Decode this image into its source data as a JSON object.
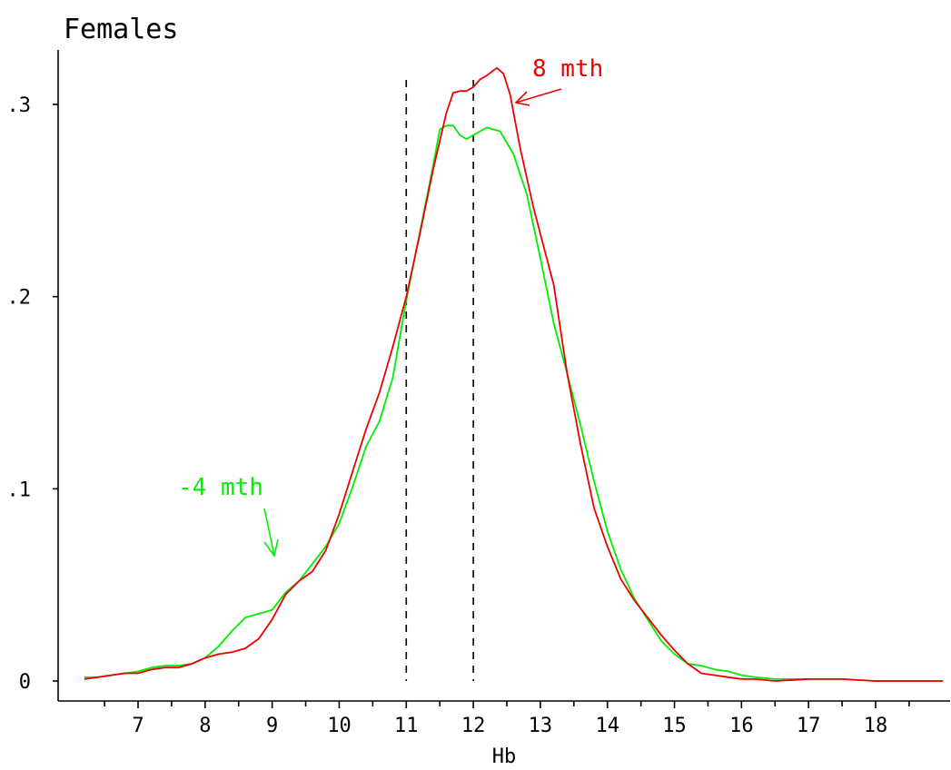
{
  "chart_data": {
    "type": "line",
    "title": "Females",
    "xlabel": "Hb",
    "ylabel": "",
    "xlim": [
      6.2,
      19.0
    ],
    "ylim": [
      0,
      0.32
    ],
    "x_ticks": [
      7,
      8,
      9,
      10,
      11,
      12,
      13,
      14,
      15,
      16,
      17,
      18
    ],
    "x_tick_labels": [
      "7",
      "8",
      "9",
      "10",
      "11",
      "12",
      "13",
      "14",
      "15",
      "16",
      "17",
      "18"
    ],
    "y_ticks": [
      0,
      0.1,
      0.2,
      0.3
    ],
    "y_tick_labels": [
      "0",
      ".1",
      ".2",
      ".3"
    ],
    "reference_lines_x": [
      11,
      12
    ],
    "grid": false,
    "series": [
      {
        "name": "-4 mth",
        "color": "#00ee00",
        "x": [
          6.2,
          6.4,
          6.6,
          6.8,
          7.0,
          7.2,
          7.4,
          7.6,
          7.8,
          8.0,
          8.2,
          8.4,
          8.6,
          8.8,
          9.0,
          9.2,
          9.4,
          9.6,
          9.8,
          10.0,
          10.2,
          10.4,
          10.6,
          10.8,
          11.0,
          11.2,
          11.4,
          11.5,
          11.6,
          11.7,
          11.8,
          11.9,
          12.0,
          12.1,
          12.2,
          12.3,
          12.4,
          12.6,
          12.8,
          13.0,
          13.2,
          13.4,
          13.6,
          13.8,
          14.0,
          14.2,
          14.4,
          14.6,
          14.8,
          15.0,
          15.2,
          15.4,
          15.6,
          15.8,
          16.0,
          16.2,
          16.5,
          17.0,
          17.5,
          18.0,
          18.5,
          19.0
        ],
        "y": [
          0.002,
          0.002,
          0.003,
          0.004,
          0.005,
          0.007,
          0.008,
          0.008,
          0.009,
          0.012,
          0.018,
          0.026,
          0.033,
          0.035,
          0.037,
          0.046,
          0.052,
          0.061,
          0.07,
          0.082,
          0.101,
          0.122,
          0.135,
          0.158,
          0.198,
          0.233,
          0.268,
          0.287,
          0.289,
          0.289,
          0.284,
          0.282,
          0.284,
          0.286,
          0.288,
          0.287,
          0.286,
          0.274,
          0.253,
          0.22,
          0.186,
          0.16,
          0.133,
          0.104,
          0.078,
          0.058,
          0.043,
          0.032,
          0.021,
          0.014,
          0.009,
          0.008,
          0.006,
          0.005,
          0.003,
          0.002,
          0.001,
          0.001,
          0.001,
          0.0,
          0.0,
          0.0
        ]
      },
      {
        "name": "8 mth",
        "color": "#ee0000",
        "x": [
          6.2,
          6.4,
          6.6,
          6.8,
          7.0,
          7.2,
          7.4,
          7.6,
          7.8,
          8.0,
          8.2,
          8.4,
          8.6,
          8.8,
          9.0,
          9.2,
          9.4,
          9.6,
          9.8,
          10.0,
          10.2,
          10.4,
          10.6,
          10.8,
          11.0,
          11.2,
          11.4,
          11.6,
          11.7,
          11.8,
          11.9,
          12.0,
          12.1,
          12.2,
          12.35,
          12.45,
          12.55,
          12.7,
          12.9,
          13.2,
          13.4,
          13.6,
          13.8,
          14.0,
          14.2,
          14.4,
          14.6,
          14.8,
          15.0,
          15.2,
          15.4,
          15.6,
          15.8,
          16.0,
          16.2,
          16.5,
          17.0,
          17.5,
          18.0,
          18.5,
          19.0
        ],
        "y": [
          0.001,
          0.002,
          0.003,
          0.004,
          0.004,
          0.006,
          0.007,
          0.007,
          0.009,
          0.012,
          0.014,
          0.015,
          0.017,
          0.022,
          0.032,
          0.045,
          0.052,
          0.057,
          0.068,
          0.087,
          0.109,
          0.131,
          0.15,
          0.174,
          0.2,
          0.232,
          0.266,
          0.296,
          0.306,
          0.307,
          0.307,
          0.309,
          0.313,
          0.315,
          0.319,
          0.316,
          0.305,
          0.277,
          0.246,
          0.206,
          0.16,
          0.123,
          0.09,
          0.07,
          0.053,
          0.042,
          0.033,
          0.024,
          0.016,
          0.009,
          0.004,
          0.003,
          0.002,
          0.001,
          0.001,
          0.0,
          0.001,
          0.001,
          0.0,
          0.0,
          0.0
        ]
      }
    ],
    "annotations": [
      {
        "text": "8 mth",
        "color": "#ee0000"
      },
      {
        "text": "-4 mth",
        "color": "#00ee00"
      }
    ]
  }
}
